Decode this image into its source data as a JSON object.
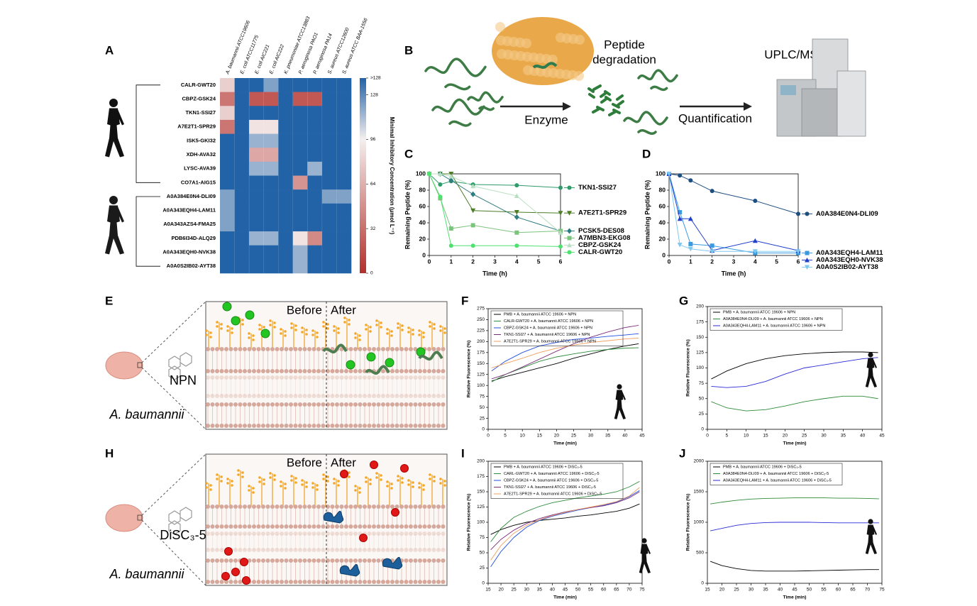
{
  "panel_labels": [
    "A",
    "B",
    "C",
    "D",
    "E",
    "F",
    "G",
    "H",
    "I",
    "J"
  ],
  "panel_b": {
    "peptide_degradation": [
      "Peptide",
      "degradation"
    ],
    "enzyme": "Enzyme",
    "quantification": "Quantification",
    "instrument": "UPLC/MS"
  },
  "panel_e": {
    "before": "Before",
    "after": "After",
    "probe": "NPN",
    "organism": "A. baumannii"
  },
  "panel_h": {
    "before": "Before",
    "after": "After",
    "probe": "DiSC₃-5",
    "organism": "A. baumannii"
  },
  "chart_data": [
    {
      "type": "heatmap",
      "columns": [
        "A. baumannii ATCC19606",
        "E. coli ATCC11775",
        "E. coli AIC221",
        "E. coli AIC222",
        "K. pneumoniae ATCC13883",
        "P. aeruginosa PAO1",
        "P. aeruginosa PA14",
        "S. aureus ATCC12600",
        "S. aureus ATCC BAA-1556"
      ],
      "rows": [
        "CALR-GWT20",
        "CBPZ-GSK24",
        "TKN1-SSI27",
        "A7E2T1-SPR29",
        "ISK5-GKI32",
        "XDH-AVA32",
        "LYSC-AVA39",
        "CO7A1-AIG15",
        "A0A384E0N4-DLI09",
        "A0A343EQH4-LAM11",
        "A0A343AZS4-FMA25",
        "PDB6I34D-ALQ29",
        "A0A343EQH0-NVK38",
        "A0A0S2IB02-AYT38"
      ],
      "values": [
        [
          80,
          140,
          140,
          120,
          140,
          140,
          140,
          140,
          140
        ],
        [
          35,
          140,
          20,
          20,
          140,
          20,
          20,
          140,
          140
        ],
        [
          80,
          140,
          140,
          140,
          140,
          140,
          140,
          140,
          140
        ],
        [
          35,
          140,
          90,
          90,
          140,
          140,
          140,
          140,
          140
        ],
        [
          140,
          140,
          115,
          115,
          140,
          140,
          140,
          140,
          140
        ],
        [
          140,
          140,
          60,
          60,
          140,
          140,
          140,
          140,
          140
        ],
        [
          140,
          140,
          115,
          115,
          140,
          140,
          115,
          140,
          140
        ],
        [
          140,
          140,
          140,
          140,
          140,
          50,
          140,
          140,
          140
        ],
        [
          120,
          140,
          140,
          140,
          140,
          140,
          140,
          120,
          120
        ],
        [
          120,
          140,
          140,
          140,
          140,
          140,
          140,
          140,
          140
        ],
        [
          120,
          140,
          140,
          140,
          140,
          140,
          140,
          140,
          140
        ],
        [
          140,
          140,
          115,
          115,
          140,
          90,
          45,
          140,
          140
        ],
        [
          140,
          140,
          140,
          140,
          140,
          115,
          140,
          140,
          140
        ],
        [
          140,
          140,
          140,
          140,
          140,
          115,
          140,
          140,
          140
        ]
      ],
      "zlim": [
        0,
        140
      ],
      "zticks": [
        0,
        32,
        64,
        96,
        128,
        {
          "value": 140,
          "label": ">128"
        }
      ],
      "colorscale": [
        [
          0,
          "#b3302b"
        ],
        [
          96,
          "#f4efee"
        ],
        [
          140,
          "#2262a6"
        ]
      ],
      "colorbar_title": "Minimal Inhibitory Concentration (μmol L⁻¹)"
    },
    {
      "type": "line",
      "xlabel": "Time (h)",
      "ylabel": "Remaining Peptide (%)",
      "x": [
        0,
        0.5,
        1,
        2,
        4,
        6
      ],
      "xlim": [
        0,
        6
      ],
      "xticks": [
        0,
        1,
        2,
        3,
        4,
        5,
        6
      ],
      "ylim": [
        0,
        100
      ],
      "yticks": [
        0,
        20,
        40,
        60,
        80,
        100
      ],
      "legend": "right",
      "series": [
        {
          "name": "TKN1-SSI27",
          "color": "#2f9a6a",
          "marker": "circle",
          "values": [
            100,
            87,
            91,
            87,
            86,
            83
          ]
        },
        {
          "name": "A7E2T1-SPR29",
          "color": "#4d7d26",
          "marker": "triangle-down",
          "values": [
            100,
            100,
            100,
            55,
            53,
            52
          ]
        },
        {
          "name": "PCSK5-DES08",
          "color": "#2e7d80",
          "marker": "diamond",
          "values": [
            100,
            100,
            92,
            75,
            47,
            30
          ]
        },
        {
          "name": "A7MBN3-EKG08",
          "color": "#7cc47c",
          "marker": "square",
          "values": [
            100,
            70,
            33,
            37,
            28,
            30
          ]
        },
        {
          "name": "CBPZ-GSK24",
          "color": "#b9dfc2",
          "marker": "triangle-up",
          "values": [
            100,
            100,
            97,
            85,
            73,
            28
          ]
        },
        {
          "name": "CALR-GWT20",
          "color": "#4fe070",
          "marker": "circle",
          "values": [
            100,
            72,
            12,
            12,
            12,
            11
          ]
        }
      ]
    },
    {
      "type": "line",
      "xlabel": "Time (h)",
      "ylabel": "Remaining Peptide (%)",
      "x": [
        0,
        0.5,
        1,
        2,
        4,
        6
      ],
      "xlim": [
        0,
        6
      ],
      "xticks": [
        0,
        1,
        2,
        3,
        4,
        5,
        6
      ],
      "ylim": [
        0,
        100
      ],
      "yticks": [
        0,
        20,
        40,
        60,
        80,
        100
      ],
      "legend": "right",
      "series": [
        {
          "name": "A0A384E0N4-DLI09",
          "color": "#1c4e80",
          "marker": "circle",
          "values": [
            100,
            98,
            92,
            79,
            67,
            51
          ]
        },
        {
          "name": "A0A343EQH4-LAM11",
          "color": "#3a9ae0",
          "marker": "square",
          "values": [
            100,
            53,
            14,
            12,
            3,
            3
          ]
        },
        {
          "name": "A0A343EQH0-NVK38",
          "color": "#1f3fcc",
          "marker": "triangle-up",
          "values": [
            100,
            45,
            45,
            6,
            18,
            6
          ]
        },
        {
          "name": "A0A0S2IB02-AYT38",
          "color": "#7ec8f0",
          "marker": "triangle-down",
          "values": [
            100,
            13,
            8,
            5,
            5,
            5
          ]
        }
      ]
    },
    {
      "type": "line",
      "xlabel": "Time (min)",
      "ylabel": "Relative Fluorescence (%)",
      "x": [
        1,
        5,
        10,
        15,
        20,
        25,
        30,
        35,
        40,
        44
      ],
      "xlim": [
        0,
        45
      ],
      "xticks": [
        0,
        5,
        10,
        15,
        20,
        25,
        30,
        35,
        40,
        45
      ],
      "ylim": [
        0,
        275
      ],
      "yticks": [
        0,
        25,
        50,
        75,
        100,
        125,
        150,
        175,
        200,
        225,
        250,
        275
      ],
      "legend": "upper left",
      "series": [
        {
          "name": "PMB + A. baumannii ATCC 19606 + NPN",
          "color": "#000000",
          "values": [
            110,
            120,
            130,
            140,
            150,
            162,
            172,
            182,
            190,
            195
          ]
        },
        {
          "name": "CALR-GWT20 + A. baumannii ATCC 19606 + NPN",
          "color": "#2e8b3a",
          "values": [
            108,
            125,
            140,
            155,
            165,
            172,
            178,
            182,
            185,
            186
          ]
        },
        {
          "name": "CBPZ-GSK24 + A. baumannii ATCC 19606 + NPN",
          "color": "#1f4fe0",
          "values": [
            133,
            155,
            175,
            190,
            198,
            205,
            208,
            212,
            215,
            218
          ]
        },
        {
          "name": "TKN1-SSI27 + A. baumannii ATCC 19606 + NPN",
          "color": "#7b2d7b",
          "values": [
            115,
            125,
            142,
            160,
            178,
            195,
            210,
            222,
            232,
            237
          ]
        },
        {
          "name": "A7E2T1-SPR29 + A. baumannii ATCC 19606 + NPN",
          "color": "#f0a060",
          "values": [
            140,
            150,
            162,
            175,
            185,
            192,
            198,
            202,
            206,
            208
          ]
        }
      ]
    },
    {
      "type": "line",
      "xlabel": "Time (min)",
      "ylabel": "Relative Fluorescence (%)",
      "x": [
        1,
        5,
        10,
        15,
        20,
        25,
        30,
        35,
        40,
        44
      ],
      "xlim": [
        0,
        45
      ],
      "xticks": [
        0,
        5,
        10,
        15,
        20,
        25,
        30,
        35,
        40,
        45
      ],
      "ylim": [
        0,
        200
      ],
      "yticks": [
        0,
        25,
        50,
        75,
        100,
        125,
        150,
        175,
        200
      ],
      "legend": "upper left",
      "series": [
        {
          "name": "PMB + A. baumannii ATCC 19606 + NPN",
          "color": "#000000",
          "values": [
            82,
            95,
            107,
            115,
            120,
            123,
            125,
            126,
            126,
            125
          ]
        },
        {
          "name": "A0A384E0N4-DLI09 + A. baumannii ATCC 19606 + NPN",
          "color": "#2e8b3a",
          "values": [
            45,
            35,
            30,
            32,
            38,
            45,
            50,
            54,
            54,
            50
          ]
        },
        {
          "name": "A0A343EQH4-LAM11 + A. baumannii ATCC 19606 + NPN",
          "color": "#2a2ad8",
          "values": [
            70,
            68,
            70,
            78,
            90,
            100,
            105,
            110,
            115,
            117
          ]
        }
      ]
    },
    {
      "type": "line",
      "xlabel": "Time (min)",
      "ylabel": "Relative Fluorescence (%)",
      "x": [
        16,
        20,
        25,
        30,
        35,
        40,
        45,
        50,
        55,
        60,
        65,
        70,
        74
      ],
      "xlim": [
        15,
        75
      ],
      "xticks": [
        15,
        20,
        25,
        30,
        35,
        40,
        45,
        50,
        55,
        60,
        65,
        70,
        75
      ],
      "ylim": [
        0,
        200
      ],
      "yticks": [
        0,
        25,
        50,
        75,
        100,
        125,
        150,
        175,
        200
      ],
      "legend": "upper left",
      "series": [
        {
          "name": "PMB + A. baumannii ATCC 19606 + DiSC₃-5",
          "color": "#000000",
          "values": [
            80,
            88,
            95,
            100,
            103,
            105,
            107,
            110,
            112,
            115,
            118,
            123,
            130
          ]
        },
        {
          "name": "CARL-GWT20 + A. baumannii ATCC 19606 + DiSC₃-5",
          "color": "#2e8b3a",
          "values": [
            68,
            90,
            108,
            118,
            126,
            132,
            136,
            140,
            143,
            146,
            150,
            158,
            167
          ]
        },
        {
          "name": "CBPZ-GSK24 + A. baumannii ATCC 19606 + DiSC₃-5",
          "color": "#1f4fe0",
          "values": [
            27,
            52,
            75,
            92,
            103,
            110,
            115,
            120,
            124,
            128,
            133,
            142,
            152
          ]
        },
        {
          "name": "TKN1-SSI27 + A. baumannii ATCC 19606 + DiSC₃-5",
          "color": "#7b2d7b",
          "values": [
            55,
            72,
            87,
            98,
            106,
            112,
            117,
            121,
            124,
            127,
            132,
            140,
            150
          ]
        },
        {
          "name": "A7E2T1-SPR29 + A. baumannii ATCC 19606 + DiSC₃-5",
          "color": "#f0a060",
          "values": [
            38,
            62,
            82,
            95,
            104,
            111,
            116,
            121,
            125,
            129,
            134,
            143,
            157
          ]
        }
      ]
    },
    {
      "type": "line",
      "xlabel": "Time (min)",
      "ylabel": "Relative Fluorescence (%)",
      "x": [
        16,
        20,
        25,
        30,
        35,
        40,
        45,
        50,
        55,
        60,
        65,
        70,
        74
      ],
      "xlim": [
        15,
        75
      ],
      "xticks": [
        15,
        20,
        25,
        30,
        35,
        40,
        45,
        50,
        55,
        60,
        65,
        70,
        75
      ],
      "ylim": [
        0,
        2000
      ],
      "yticks": [
        0,
        500,
        1000,
        1500,
        2000
      ],
      "legend": "upper left",
      "series": [
        {
          "name": "PMB + A. baumannii ATCC 19606 + DiSC₃-5",
          "color": "#000000",
          "values": [
            360,
            290,
            240,
            210,
            200,
            200,
            200,
            205,
            210,
            215,
            220,
            225,
            225
          ]
        },
        {
          "name": "A0A384E0N4-DLI09 + A. baumannii ATCC 19606 + DiSC₃-5",
          "color": "#2e8b3a",
          "values": [
            1300,
            1330,
            1360,
            1380,
            1390,
            1395,
            1400,
            1400,
            1400,
            1395,
            1395,
            1390,
            1385
          ]
        },
        {
          "name": "A0A343EQH4-LAM11 + A. baumannii ATCC 19606 + DiSC₃-5",
          "color": "#2a2ad8",
          "values": [
            860,
            900,
            950,
            980,
            995,
            1000,
            1000,
            1000,
            995,
            990,
            990,
            990,
            990
          ]
        }
      ]
    }
  ]
}
